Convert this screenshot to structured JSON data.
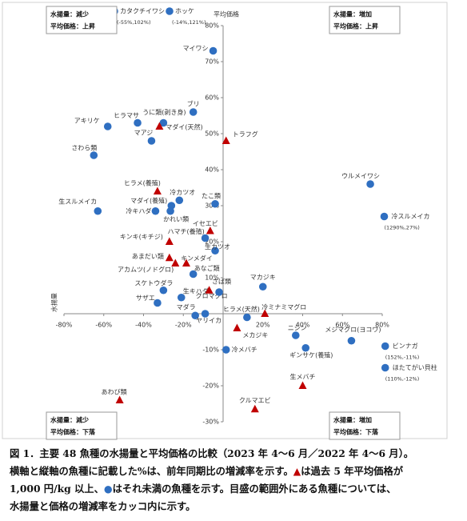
{
  "chart_data": {
    "type": "scatter",
    "x_label": "水揚量",
    "y_label": "平均価格",
    "xlim": [
      -80,
      80
    ],
    "ylim": [
      -30,
      80
    ],
    "xticks": [
      {
        "value": -80,
        "label": "-80%"
      },
      {
        "value": -60,
        "label": "-60%"
      },
      {
        "value": -40,
        "label": "-40%"
      },
      {
        "value": -20,
        "label": "-20%"
      },
      {
        "value": 20,
        "label": "20%"
      },
      {
        "value": 40,
        "label": "40%"
      },
      {
        "value": 60,
        "label": "60%"
      },
      {
        "value": 80,
        "label": "80%"
      }
    ],
    "yticks": [
      {
        "value": -30,
        "label": "-30%"
      },
      {
        "value": -20,
        "label": "-20%"
      },
      {
        "value": -10,
        "label": "-10%"
      },
      {
        "value": 10,
        "label": "10%"
      },
      {
        "value": 20,
        "label": "20%"
      },
      {
        "value": 30,
        "label": "30%"
      },
      {
        "value": 40,
        "label": "40%"
      },
      {
        "value": 50,
        "label": "50%"
      },
      {
        "value": 60,
        "label": "60%"
      },
      {
        "value": 70,
        "label": "70%"
      },
      {
        "value": 80,
        "label": "80%"
      }
    ],
    "colors": {
      "circle": "#2f6fc1",
      "triangle": "#c00000"
    },
    "points": [
      {
        "name": "マイワシ",
        "marker": "circle",
        "x": -5,
        "y": 73
      },
      {
        "name": "ブリ",
        "marker": "circle",
        "x": -15,
        "y": 56
      },
      {
        "name": "ヒラマサ",
        "marker": "circle",
        "x": -43,
        "y": 53
      },
      {
        "name": "うに類(剥き身)",
        "marker": "circle",
        "x": -30,
        "y": 53
      },
      {
        "name": "マダイ(天然)",
        "marker": "triangle",
        "x": -32,
        "y": 52
      },
      {
        "name": "アキリケ",
        "marker": "circle",
        "x": -58,
        "y": 52
      },
      {
        "name": "マアジ",
        "marker": "circle",
        "x": -36,
        "y": 48
      },
      {
        "name": "さわら類",
        "marker": "circle",
        "x": -65,
        "y": 44
      },
      {
        "name": "トラフグ",
        "marker": "triangle",
        "x": 1.5,
        "y": 48
      },
      {
        "name": "ウルメイワシ",
        "marker": "circle",
        "x": 74,
        "y": 36
      },
      {
        "name": "冷スルメイカ",
        "marker": "circle",
        "x": 81,
        "y": 27,
        "note": "(1290%,27%)"
      },
      {
        "name": "ヒラメ(養殖)",
        "marker": "triangle",
        "x": -33,
        "y": 34
      },
      {
        "name": "冷カツオ",
        "marker": "circle",
        "x": -22,
        "y": 31.5
      },
      {
        "name": "たこ類",
        "marker": "circle",
        "x": -4,
        "y": 30.5
      },
      {
        "name": "マダイ(養殖)",
        "marker": "circle",
        "x": -26,
        "y": 30
      },
      {
        "name": "生スルメイカ",
        "marker": "circle",
        "x": -63,
        "y": 28.5
      },
      {
        "name": "冷キハダ",
        "marker": "circle",
        "x": -34,
        "y": 28.5
      },
      {
        "name": "かれい類",
        "marker": "circle",
        "x": -26.5,
        "y": 28.5
      },
      {
        "name": "イセエビ",
        "marker": "triangle",
        "x": -6.5,
        "y": 23
      },
      {
        "name": "ハマチ(養殖)",
        "marker": "circle",
        "x": -9,
        "y": 21
      },
      {
        "name": "キンキ(キチジ)",
        "marker": "triangle",
        "x": -27,
        "y": 20
      },
      {
        "name": "生カツオ",
        "marker": "circle",
        "x": -4,
        "y": 17.5
      },
      {
        "name": "あまだい類",
        "marker": "triangle",
        "x": -27,
        "y": 15.5
      },
      {
        "name": "キンメダイ",
        "marker": "triangle",
        "x": -18.5,
        "y": 14
      },
      {
        "name": "アカムツ(ノドグロ)",
        "marker": "triangle",
        "x": -24,
        "y": 14
      },
      {
        "name": "あなご類",
        "marker": "circle",
        "x": -15,
        "y": 11
      },
      {
        "name": "マカジキ",
        "marker": "circle",
        "x": 20,
        "y": 7.5
      },
      {
        "name": "スケトウダラ",
        "marker": "circle",
        "x": -30,
        "y": 6.5
      },
      {
        "name": "生キハダ",
        "marker": "circle",
        "x": -21,
        "y": 4.5
      },
      {
        "name": "クロマグロ",
        "marker": "triangle",
        "x": -7,
        "y": 6.5
      },
      {
        "name": "さば類",
        "marker": "circle",
        "x": -2,
        "y": 6
      },
      {
        "name": "サザエ",
        "marker": "circle",
        "x": -33,
        "y": 3
      },
      {
        "name": "マダラ",
        "marker": "circle",
        "x": -9,
        "y": 0
      },
      {
        "name": "ヤリイカ",
        "marker": "circle",
        "x": -14,
        "y": -0.5
      },
      {
        "name": "ヒラメ(天然)",
        "marker": "circle",
        "x": 12,
        "y": -1
      },
      {
        "name": "冷ミナミマグロ",
        "marker": "triangle",
        "x": 21,
        "y": 0
      },
      {
        "name": "メカジキ",
        "marker": "triangle",
        "x": 7,
        "y": -4
      },
      {
        "name": "ニシン",
        "marker": "circle",
        "x": 36.5,
        "y": -6
      },
      {
        "name": "メジマグロ(ヨコワ)",
        "marker": "circle",
        "x": 64.5,
        "y": -7.5
      },
      {
        "name": "冷メバチ",
        "marker": "circle",
        "x": 1.5,
        "y": -10
      },
      {
        "name": "ギンサケ(養殖)",
        "marker": "circle",
        "x": 41.5,
        "y": -9.5
      },
      {
        "name": "ビンナガ",
        "marker": "circle",
        "x": 81.5,
        "y": -9,
        "note": "(152%,-11%)"
      },
      {
        "name": "ほたてがい貝柱",
        "marker": "circle",
        "x": 81.5,
        "y": -15,
        "note": "(110%,-12%)"
      },
      {
        "name": "生メバチ",
        "marker": "triangle",
        "x": 40,
        "y": -20
      },
      {
        "name": "クルマエビ",
        "marker": "triangle",
        "x": 16,
        "y": -26.5
      },
      {
        "name": "あわび類",
        "marker": "triangle",
        "x": -52,
        "y": -24
      }
    ],
    "offscale": [
      {
        "name": "カタクチイワシ",
        "marker": "circle",
        "note": "(-55%,102%)"
      },
      {
        "name": "ホッケ",
        "marker": "circle",
        "note": "(-14%,121%)"
      }
    ],
    "quadrants": [
      [
        "水揚量：減少",
        "平均価格：上昇"
      ],
      [
        "水揚量：増加",
        "平均価格：上昇"
      ],
      [
        "水揚量：減少",
        "平均価格：下落"
      ],
      [
        "水揚量：増加",
        "平均価格：下落"
      ]
    ]
  },
  "caption": [
    "図 1．主要 48 魚種の水揚量と平均価格の比較（2023 年 4～6 月／2022 年 4～6 月）。",
    "横軸と縦軸の魚種に記載した%は、前年同期比の増減率を示す。",
    "▲",
    "は過去 5 年平均価格が",
    "1,000 円/kg 以上、",
    "●",
    "はそれ未満の魚種を示す。目盛の範囲外にある魚種については、",
    "水揚量と価格の増減率をカッコ内に示す。"
  ]
}
